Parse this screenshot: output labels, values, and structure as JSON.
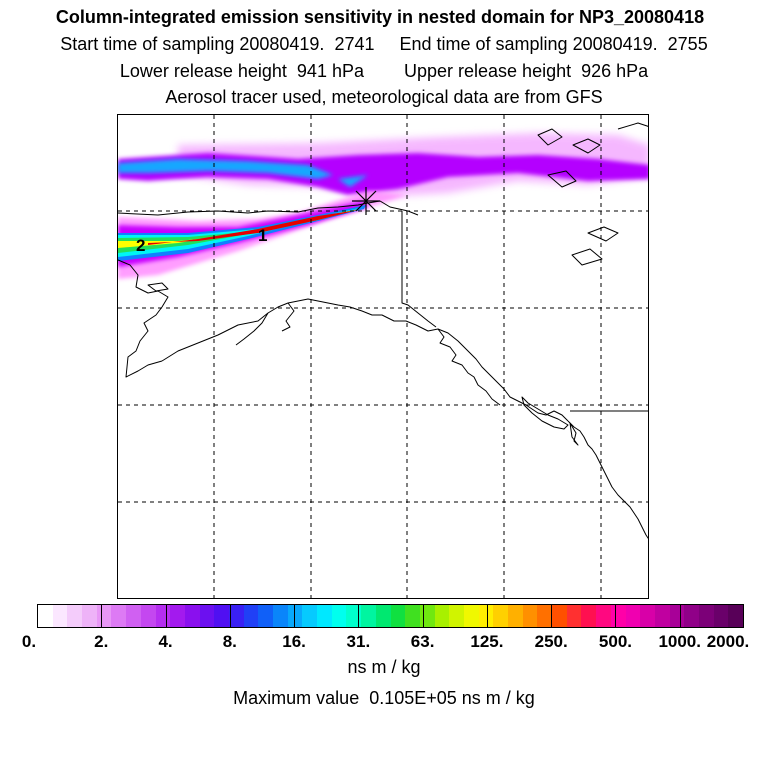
{
  "title": {
    "line1": "Column-integrated emission sensitivity in nested domain for NP3_20080418",
    "line2": "Start time of sampling 20080419.  2741     End time of sampling 20080419.  2755",
    "line3": "Lower release height  941 hPa        Upper release height  926 hPa",
    "line4": "Aerosol tracer used, meteorological data are from GFS"
  },
  "map": {
    "annotations": [
      "2",
      "1"
    ],
    "release_marker": "star-marker",
    "plume_colors": {
      "upper_wisps": "#f3a6ff",
      "upper_band": "#b400ff",
      "upper_core": "#16a7ff",
      "lower_outer": "#ff8cff",
      "lower_band": "#c800ff",
      "lower_red": "#e60000",
      "lower_yellow": "#ffff00",
      "lower_green": "#22e05a",
      "lower_cyan": "#00f5f5",
      "lower_blue": "#1080ff"
    }
  },
  "colorbar": {
    "colors": [
      "#ffffff",
      "#fbe7ff",
      "#f4ccfb",
      "#eeb3f8",
      "#e897f6",
      "#dd7af4",
      "#d060f2",
      "#c447f0",
      "#b52ef0",
      "#a31aee",
      "#8a10ee",
      "#6c10f0",
      "#5010f2",
      "#3a20f4",
      "#2040f6",
      "#1060f8",
      "#0a85fa",
      "#08a8fc",
      "#06cafe",
      "#00e8ff",
      "#00ffee",
      "#00ffcc",
      "#00f5a0",
      "#00e870",
      "#10e040",
      "#40e020",
      "#70e810",
      "#a8f000",
      "#d0f400",
      "#f0f800",
      "#ffee00",
      "#ffd000",
      "#ffb000",
      "#ff9000",
      "#ff7000",
      "#ff5000",
      "#ff3030",
      "#ff1050",
      "#ff0880",
      "#ff00a8",
      "#f000b0",
      "#d800a8",
      "#c000a0",
      "#a80098",
      "#900088",
      "#7c0078",
      "#6a006a",
      "#580058"
    ],
    "tick_labels": [
      "0.",
      "2.",
      "4.",
      "8.",
      "16.",
      "31.",
      "63.",
      "125.",
      "250.",
      "500.",
      "1000.",
      "2000."
    ],
    "unit": "ns m / kg",
    "max_value_text": "Maximum value  0.105E+05 ns m / kg"
  }
}
